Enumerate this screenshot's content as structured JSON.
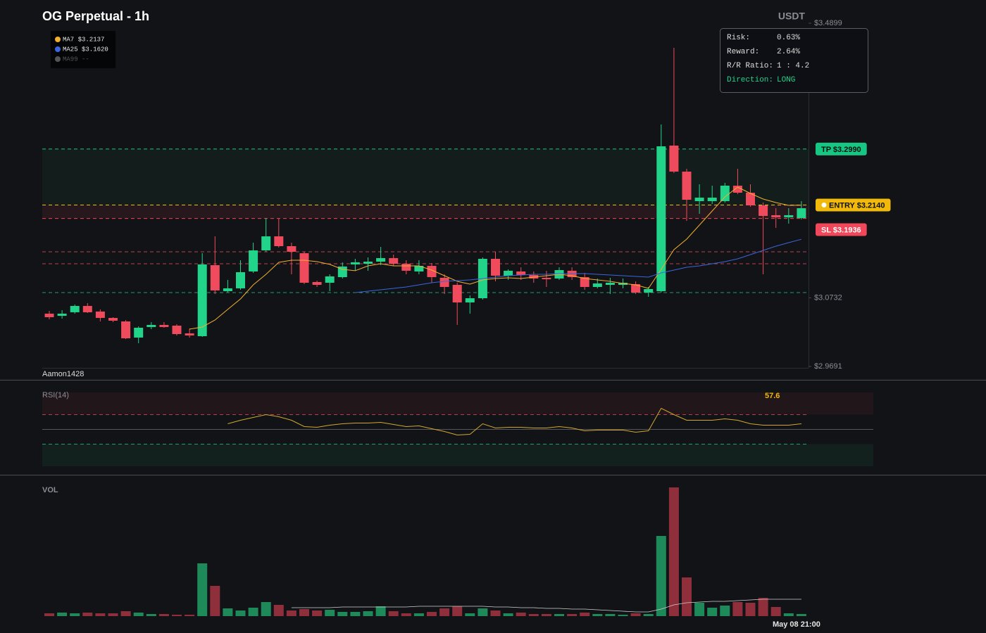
{
  "header": {
    "title": "OG Perpetual - 1h",
    "currency": "USDT",
    "watermark": "Aamon1428"
  },
  "risk_panel": {
    "rows": [
      [
        "Risk:",
        "0.63%"
      ],
      [
        "Reward:",
        "2.64%"
      ],
      [
        "R/R Ratio:",
        "1 : 4.2"
      ],
      [
        "Direction:",
        "LONG"
      ]
    ]
  },
  "chart_data": [
    {
      "type": "candlestick",
      "open": [
        3.0492,
        3.0459,
        3.0513,
        3.0609,
        3.0524,
        3.0427,
        3.0374,
        3.0129,
        3.0289,
        3.0321,
        3.031,
        3.0193,
        3.015,
        3.1228,
        3.0833,
        3.0876,
        3.1132,
        3.1452,
        3.1665,
        3.1516,
        3.1409,
        3.0972,
        3.0961,
        3.1046,
        3.1239,
        3.1249,
        3.1281,
        3.1335,
        3.1249,
        3.1132,
        3.1217,
        3.1036,
        3.0929,
        3.0662,
        3.0726,
        3.1324,
        3.1068,
        3.1132,
        3.1078,
        3.1036,
        3.1025,
        3.1143,
        3.1046,
        3.0897,
        3.0929,
        3.0929,
        3.094,
        3.0812,
        3.0833,
        3.3042,
        3.2647,
        3.2199,
        3.2199,
        3.2199,
        3.2434,
        3.2327,
        3.2135,
        3.1986,
        3.1954,
        3.1943
      ],
      "high": [
        3.0534,
        3.0545,
        3.063,
        3.0652,
        3.0556,
        3.0438,
        3.0395,
        3.0299,
        3.0363,
        3.0363,
        3.0331,
        3.0267,
        3.1409,
        3.1665,
        3.1004,
        3.1303,
        3.1569,
        3.1943,
        3.1932,
        3.1569,
        3.1431,
        3.0993,
        3.1089,
        3.1271,
        3.1324,
        3.1345,
        3.1505,
        3.1388,
        3.1303,
        3.1303,
        3.126,
        3.1089,
        3.0961,
        3.0769,
        3.1345,
        3.1431,
        3.1164,
        3.1196,
        3.1132,
        3.1143,
        3.1196,
        3.1196,
        3.111,
        3.1025,
        3.1036,
        3.1025,
        3.0982,
        3.0897,
        3.3362,
        3.4526,
        3.269,
        3.2455,
        3.2434,
        3.2477,
        3.269,
        3.2455,
        3.2178,
        3.2092,
        3.2092,
        3.2199
      ],
      "low": [
        3.0406,
        3.0417,
        3.0492,
        3.0502,
        3.0374,
        3.0363,
        3.0107,
        3.0043,
        3.0257,
        3.0278,
        3.0161,
        3.0129,
        3.0139,
        3.079,
        3.0812,
        3.0854,
        3.111,
        3.1431,
        3.1495,
        3.1089,
        3.094,
        3.0897,
        3.0833,
        3.1025,
        3.1143,
        3.1143,
        3.1228,
        3.1217,
        3.1089,
        3.1089,
        3.0961,
        3.079,
        3.0321,
        3.0492,
        3.0705,
        3.0982,
        3.1004,
        3.1004,
        3.0961,
        3.0897,
        3.1004,
        3.1004,
        3.0854,
        3.0876,
        3.079,
        3.0876,
        3.079,
        3.0748,
        3.0812,
        3.2626,
        3.19,
        3.2007,
        3.2156,
        3.2178,
        3.2306,
        3.2114,
        3.1089,
        3.1793,
        3.1858,
        3.1922
      ],
      "close": [
        3.0438,
        3.0492,
        3.0609,
        3.0513,
        3.0427,
        3.0385,
        3.0118,
        3.0278,
        3.0321,
        3.0289,
        3.0182,
        3.0161,
        3.1239,
        3.0844,
        3.0876,
        3.1121,
        3.1452,
        3.1665,
        3.1516,
        3.1431,
        3.0961,
        3.0929,
        3.1057,
        3.1207,
        3.1271,
        3.1281,
        3.1335,
        3.1249,
        3.1143,
        3.1217,
        3.1046,
        3.0897,
        3.0662,
        3.0726,
        3.1324,
        3.1068,
        3.1143,
        3.1078,
        3.1025,
        3.1014,
        3.1153,
        3.1046,
        3.0897,
        3.095,
        3.0961,
        3.0961,
        3.0812,
        3.0865,
        3.3031,
        3.2647,
        3.222,
        3.2252,
        3.2252,
        3.2434,
        3.2327,
        3.2135,
        3.1975,
        3.1954,
        3.1986,
        3.2092
      ],
      "up_color": "#22d38a",
      "down_color": "#f04b5c",
      "ylim": [
        2.9691,
        3.4899
      ],
      "yticks": [
        {
          "value": 3.4899,
          "label": "$3.4899"
        },
        {
          "value": 3.0732,
          "label": "$3.0732"
        },
        {
          "value": 2.9691,
          "label": "$2.9691"
        }
      ],
      "overlays": [
        {
          "label": "MA7 $3.2137",
          "color": "#f0b030",
          "values": [
            null,
            null,
            null,
            null,
            null,
            null,
            null,
            null,
            null,
            null,
            null,
            3.0257,
            3.0289,
            3.0395,
            3.0556,
            3.0716,
            3.0929,
            3.1089,
            3.1271,
            3.1303,
            3.1303,
            3.1281,
            3.1239,
            3.1164,
            3.1143,
            3.1217,
            3.1249,
            3.1217,
            3.1217,
            3.1217,
            3.1153,
            3.1068,
            3.0982,
            3.094,
            3.1004,
            3.1025,
            3.1036,
            3.1025,
            3.1046,
            3.1068,
            3.1089,
            3.1068,
            3.1025,
            3.1004,
            3.0982,
            3.095,
            3.0929,
            3.0876,
            3.1164,
            3.1463,
            3.1623,
            3.1836,
            3.205,
            3.2263,
            3.2412,
            3.2316,
            3.2231,
            3.2178,
            3.2135,
            3.2137
          ]
        },
        {
          "label": "MA25 $3.1620",
          "color": "#3a66e0",
          "values": [
            null,
            null,
            null,
            null,
            null,
            null,
            null,
            null,
            null,
            null,
            null,
            null,
            null,
            null,
            null,
            null,
            null,
            null,
            null,
            null,
            null,
            null,
            null,
            null,
            3.0812,
            3.0833,
            3.0854,
            3.0876,
            3.0897,
            3.0929,
            3.0961,
            3.0982,
            3.0993,
            3.1004,
            3.1025,
            3.1046,
            3.1068,
            3.1078,
            3.1089,
            3.1089,
            3.11,
            3.11,
            3.11,
            3.1089,
            3.1078,
            3.1068,
            3.1057,
            3.1046,
            3.111,
            3.1153,
            3.1196,
            3.1217,
            3.1249,
            3.1281,
            3.1324,
            3.1388,
            3.1452,
            3.1516,
            3.1569,
            3.162
          ]
        },
        {
          "label": "MA99 --",
          "color": "#555555"
        }
      ],
      "levels": [
        {
          "label": "TP $3.2990",
          "value": 3.299,
          "color": "#16c784"
        },
        {
          "label": "ENTRY $3.2140",
          "value": 3.214,
          "color": "#f0b90b"
        },
        {
          "label": "SL $3.1936",
          "value": 3.1936,
          "color": "#f0475a"
        }
      ],
      "lines": [
        {
          "value": 3.1431,
          "color": "#b8404e"
        },
        {
          "value": 3.1249,
          "color": "#b8404e"
        },
        {
          "value": 3.0812,
          "color": "#1f9e6a"
        }
      ]
    },
    {
      "type": "line",
      "title": "RSI(14)",
      "color": "#d4a72c",
      "ylim": [
        0,
        100
      ],
      "levels": [
        70,
        50,
        30
      ],
      "values": [
        null,
        null,
        null,
        null,
        null,
        null,
        null,
        null,
        null,
        null,
        null,
        null,
        null,
        null,
        57.6,
        62.4,
        66.2,
        70.0,
        67.1,
        62.4,
        53.8,
        52.9,
        55.7,
        57.6,
        58.6,
        58.6,
        59.5,
        56.7,
        53.8,
        54.8,
        51.0,
        47.1,
        42.4,
        43.3,
        57.6,
        51.9,
        52.9,
        52.9,
        51.9,
        51.9,
        53.8,
        51.9,
        48.1,
        49.0,
        49.0,
        49.0,
        46.2,
        48.1,
        78.6,
        70.0,
        62.4,
        62.4,
        62.4,
        64.3,
        62.4,
        57.6,
        55.7,
        55.7,
        55.7,
        57.6
      ]
    },
    {
      "type": "bar",
      "title": "VOL",
      "up_color": "#1e8a5a",
      "down_color": "#8f2f3c",
      "ma_color": "#cfcfcf",
      "categories": [
        null,
        null,
        null,
        null,
        null,
        null,
        null,
        null,
        null,
        null,
        null,
        null,
        null,
        null,
        null,
        null,
        null,
        null,
        null,
        null,
        null,
        null,
        null,
        null,
        null,
        null,
        null,
        null,
        null,
        null,
        null,
        null,
        null,
        null,
        null,
        null,
        null,
        null,
        null,
        null,
        null,
        null,
        null,
        null,
        null,
        null,
        null,
        null,
        null,
        null,
        null,
        null,
        null,
        null,
        null,
        null,
        null,
        null,
        null,
        "May 08 21:00"
      ],
      "values": [
        4,
        5,
        4,
        5,
        4,
        4,
        7,
        5,
        3,
        3,
        2,
        2,
        75,
        43,
        11,
        8,
        12,
        20,
        16,
        8,
        10,
        8,
        9,
        6,
        6,
        7,
        14,
        7,
        4,
        4,
        6,
        11,
        14,
        4,
        11,
        8,
        4,
        5,
        3,
        3,
        3,
        3,
        5,
        3,
        3,
        2,
        4,
        3,
        114,
        183,
        55,
        19,
        12,
        15,
        20,
        19,
        26,
        13,
        4,
        3
      ],
      "ma": [
        null,
        null,
        null,
        null,
        null,
        null,
        null,
        null,
        null,
        null,
        null,
        null,
        null,
        null,
        null,
        null,
        null,
        null,
        null,
        12,
        12,
        12,
        12,
        13,
        13,
        13,
        13,
        13,
        13,
        14,
        14,
        14,
        14,
        14,
        14,
        13,
        13,
        12,
        12,
        11,
        11,
        10,
        10,
        9,
        8,
        7,
        6,
        6,
        10,
        16,
        19,
        20,
        21,
        21,
        22,
        23,
        24,
        24,
        24,
        24
      ]
    }
  ]
}
